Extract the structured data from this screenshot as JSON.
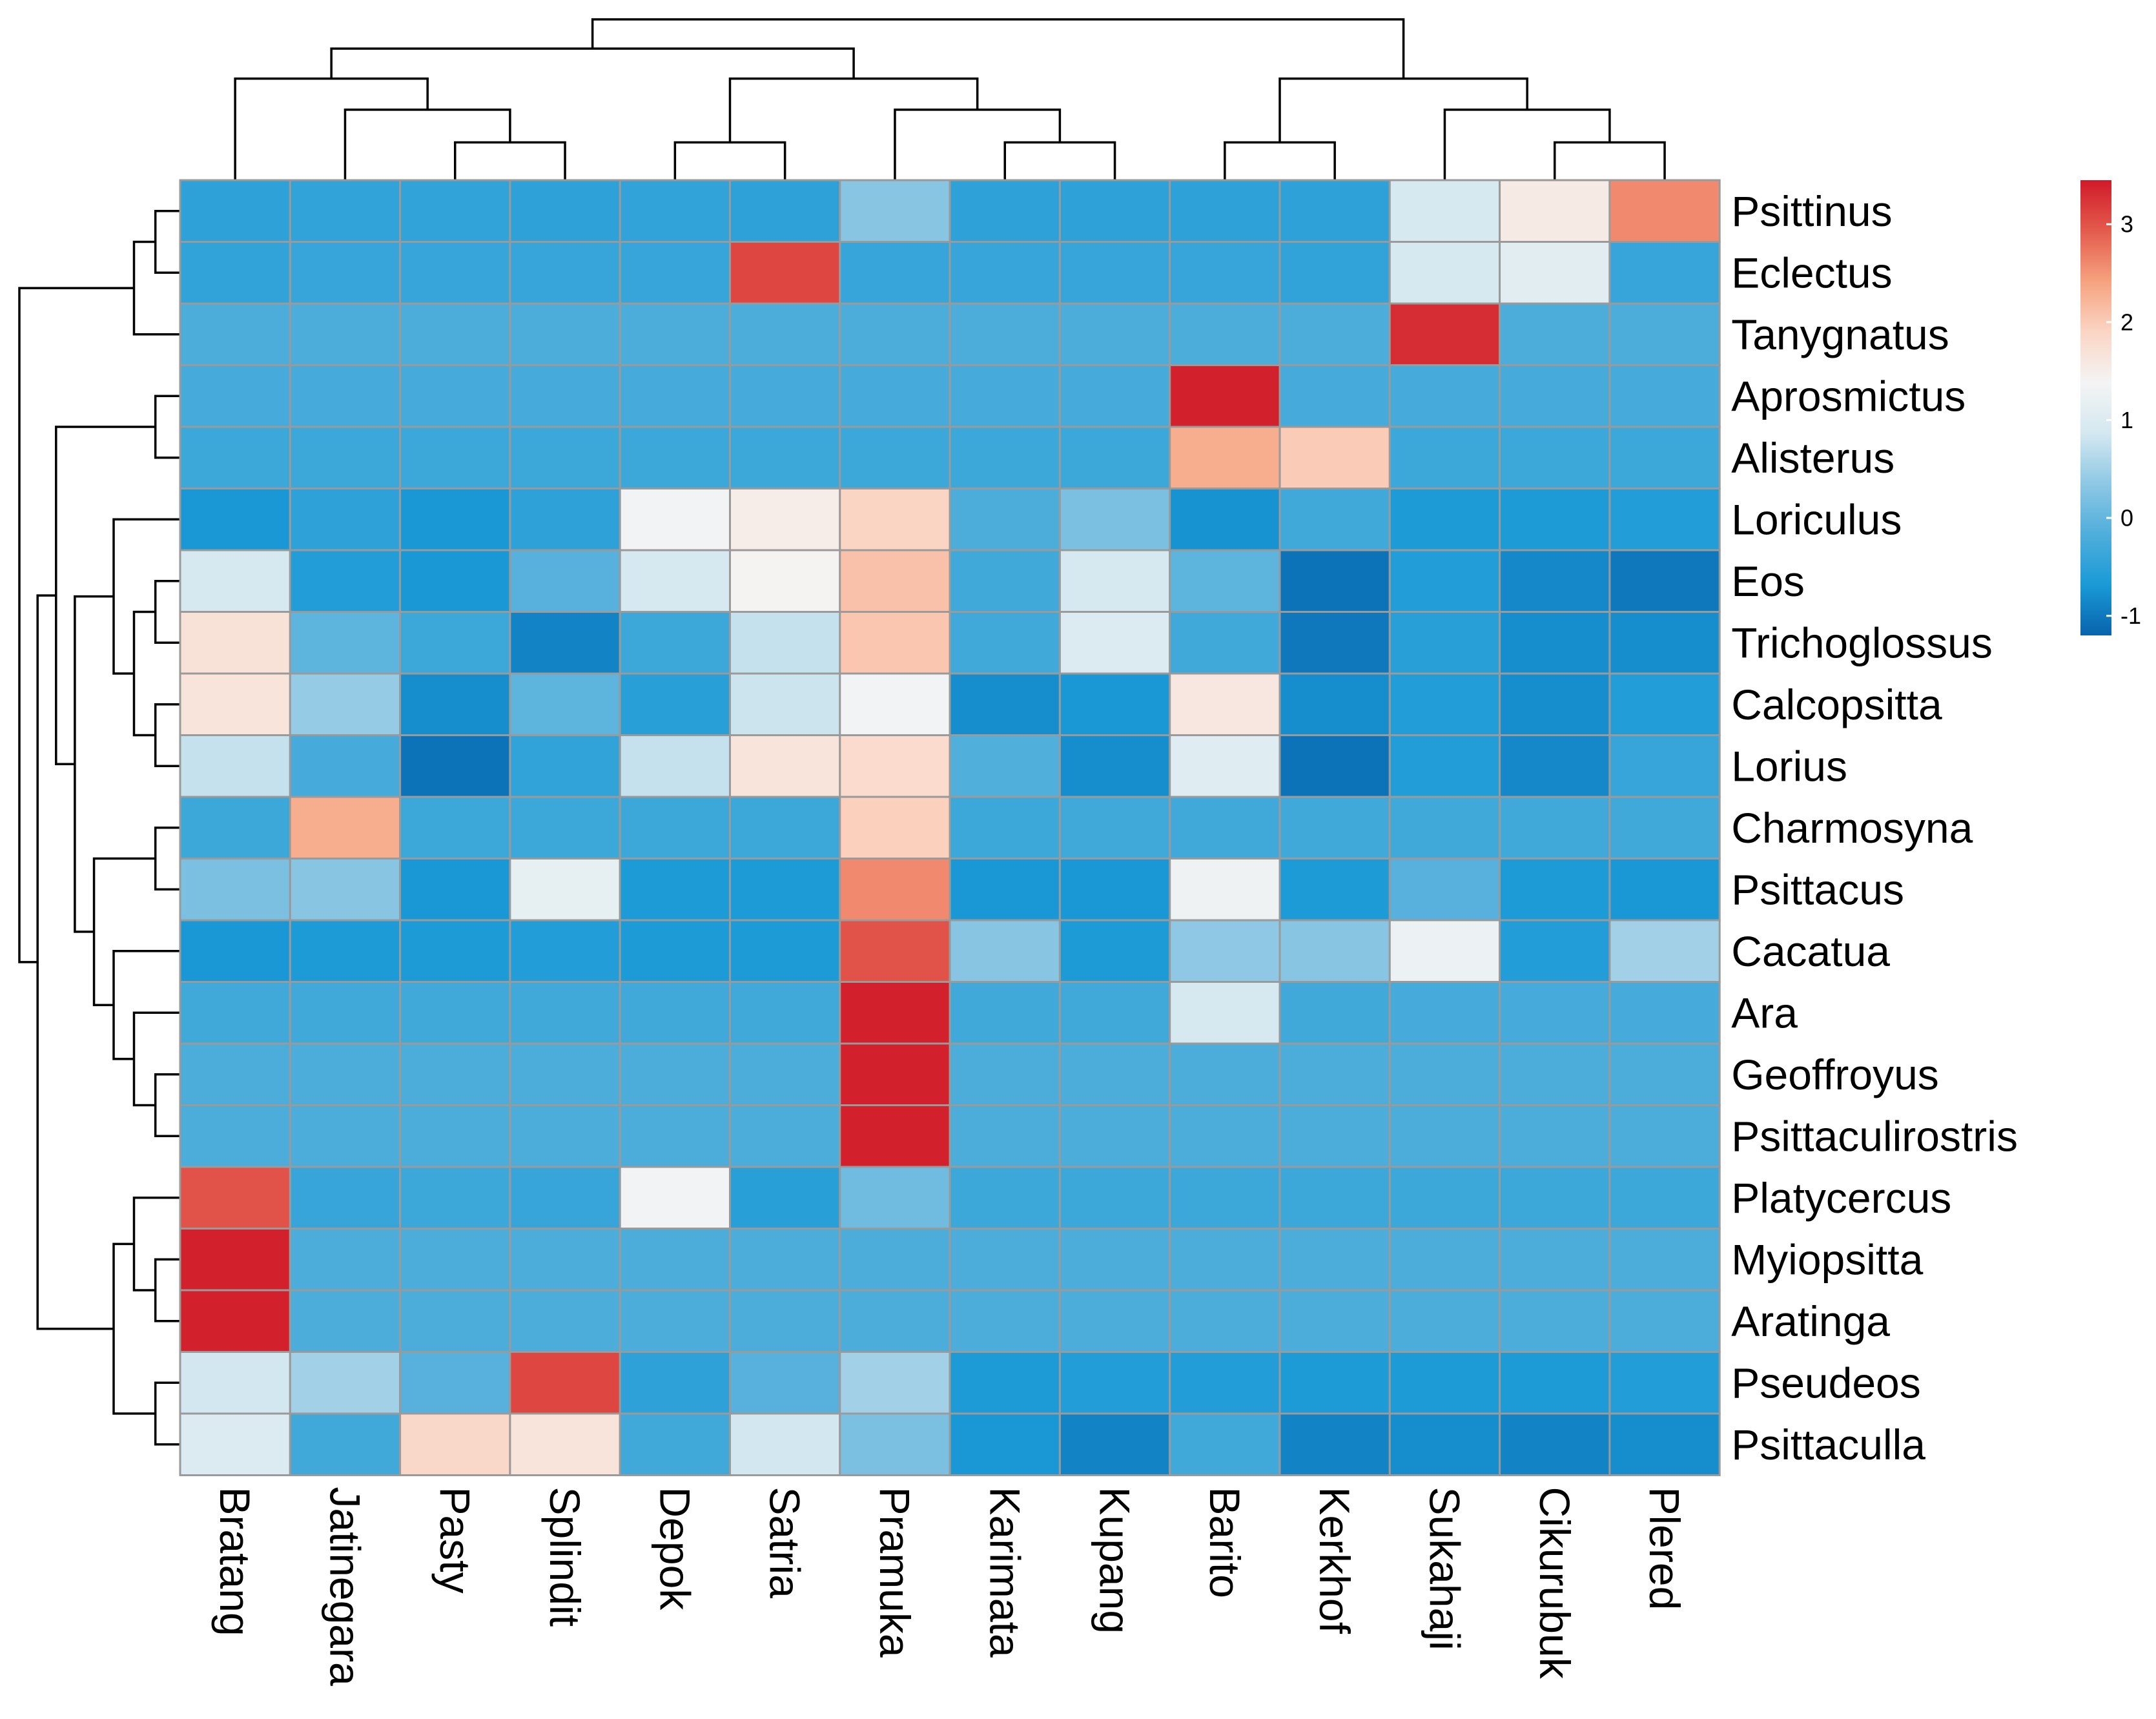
{
  "chart_data": {
    "type": "heatmap",
    "title": "",
    "columns": [
      "Bratang",
      "Jatinegara",
      "Pasty",
      "Splindit",
      "Depok",
      "Satria",
      "Pramuka",
      "Karimata",
      "Kupang",
      "Barito",
      "Kerkhof",
      "Sukahaji",
      "Cikurubuk",
      "Plered"
    ],
    "rows": [
      "Psittinus",
      "Eclectus",
      "Tanygnatus",
      "Aprosmictus",
      "Alisterus",
      "Loriculus",
      "Eos",
      "Trichoglossus",
      "Calcopsitta",
      "Lorius",
      "Charmosyna",
      "Psittacus",
      "Cacatua",
      "Ara",
      "Geoffroyus",
      "Psittaculirostris",
      "Platycercus",
      "Myiopsitta",
      "Aratinga",
      "Pseudeos",
      "Psittaculla"
    ],
    "values": [
      [
        -0.5,
        -0.45,
        -0.45,
        -0.5,
        -0.45,
        -0.5,
        0.3,
        -0.5,
        -0.5,
        -0.5,
        -0.5,
        0.9,
        1.55,
        2.6
      ],
      [
        -0.45,
        -0.4,
        -0.4,
        -0.4,
        -0.4,
        3.1,
        -0.4,
        -0.4,
        -0.4,
        -0.4,
        -0.45,
        0.9,
        1.1,
        -0.4
      ],
      [
        -0.2,
        -0.2,
        -0.2,
        -0.2,
        -0.2,
        -0.2,
        -0.2,
        -0.2,
        -0.2,
        -0.2,
        -0.2,
        3.3,
        -0.2,
        -0.2
      ],
      [
        -0.25,
        -0.25,
        -0.25,
        -0.25,
        -0.25,
        -0.25,
        -0.25,
        -0.25,
        -0.25,
        3.4,
        -0.25,
        -0.25,
        -0.25,
        -0.25
      ],
      [
        -0.35,
        -0.35,
        -0.35,
        -0.35,
        -0.35,
        -0.35,
        -0.35,
        -0.35,
        -0.35,
        2.3,
        2.0,
        -0.35,
        -0.35,
        -0.35
      ],
      [
        -0.7,
        -0.5,
        -0.7,
        -0.5,
        1.35,
        1.5,
        1.9,
        -0.2,
        0.2,
        -0.75,
        -0.3,
        -0.65,
        -0.65,
        -0.6
      ],
      [
        0.9,
        -0.6,
        -0.7,
        -0.1,
        0.9,
        1.4,
        2.1,
        -0.3,
        0.9,
        -0.05,
        -1.05,
        -0.6,
        -0.85,
        -1.0
      ],
      [
        1.7,
        -0.05,
        -0.35,
        -0.9,
        -0.35,
        0.75,
        2.05,
        -0.3,
        1.0,
        -0.3,
        -1.0,
        -0.55,
        -0.8,
        -0.8
      ],
      [
        1.65,
        0.4,
        -0.8,
        -0.05,
        -0.55,
        0.8,
        1.35,
        -0.8,
        -0.7,
        1.6,
        -0.8,
        -0.6,
        -0.8,
        -0.6
      ],
      [
        0.75,
        -0.25,
        -1.05,
        -0.45,
        0.75,
        1.65,
        1.8,
        -0.15,
        -0.8,
        1.05,
        -1.05,
        -0.6,
        -0.85,
        -0.4
      ],
      [
        -0.35,
        2.3,
        -0.35,
        -0.35,
        -0.35,
        -0.35,
        1.95,
        -0.35,
        -0.3,
        -0.3,
        -0.3,
        -0.3,
        -0.3,
        -0.3
      ],
      [
        0.2,
        0.3,
        -0.7,
        1.15,
        -0.65,
        -0.65,
        2.6,
        -0.7,
        -0.7,
        1.3,
        -0.65,
        -0.1,
        -0.65,
        -0.7
      ],
      [
        -0.7,
        -0.65,
        -0.65,
        -0.6,
        -0.65,
        -0.65,
        3.0,
        0.3,
        -0.65,
        0.35,
        0.3,
        1.25,
        -0.6,
        0.5
      ],
      [
        -0.3,
        -0.3,
        -0.3,
        -0.3,
        -0.3,
        -0.3,
        3.4,
        -0.3,
        -0.3,
        0.9,
        -0.3,
        -0.25,
        -0.25,
        -0.25
      ],
      [
        -0.2,
        -0.2,
        -0.2,
        -0.2,
        -0.2,
        -0.2,
        3.4,
        -0.2,
        -0.2,
        -0.2,
        -0.2,
        -0.2,
        -0.2,
        -0.2
      ],
      [
        -0.2,
        -0.2,
        -0.2,
        -0.2,
        -0.2,
        -0.2,
        3.4,
        -0.2,
        -0.2,
        -0.2,
        -0.2,
        -0.2,
        -0.2,
        -0.2
      ],
      [
        3.0,
        -0.4,
        -0.35,
        -0.4,
        1.35,
        -0.55,
        0.1,
        -0.35,
        -0.35,
        -0.35,
        -0.35,
        -0.35,
        -0.35,
        -0.35
      ],
      [
        3.4,
        -0.2,
        -0.2,
        -0.2,
        -0.2,
        -0.2,
        -0.2,
        -0.2,
        -0.2,
        -0.2,
        -0.2,
        -0.2,
        -0.2,
        -0.2
      ],
      [
        3.4,
        -0.2,
        -0.2,
        -0.2,
        -0.2,
        -0.2,
        -0.2,
        -0.2,
        -0.2,
        -0.2,
        -0.2,
        -0.2,
        -0.2,
        -0.2
      ],
      [
        0.85,
        0.5,
        -0.1,
        3.1,
        -0.5,
        -0.1,
        0.5,
        -0.65,
        -0.6,
        -0.6,
        -0.65,
        -0.65,
        -0.65,
        -0.6
      ],
      [
        1.0,
        -0.3,
        1.85,
        1.65,
        -0.3,
        0.85,
        0.2,
        -0.7,
        -0.9,
        -0.3,
        -0.9,
        -0.8,
        -0.9,
        -0.8
      ]
    ],
    "colorbar": {
      "min": -1.2,
      "max": 3.45,
      "ticks": [
        -1,
        0,
        1,
        2,
        3
      ],
      "tick_labels": [
        "-1",
        "0",
        "1",
        "2",
        "3"
      ]
    },
    "palette": [
      "#0863ad",
      "#1a9ad6",
      "#4faedb",
      "#8ec8e4",
      "#d4e8f0",
      "#f4f4f4",
      "#fbd5c4",
      "#f6a27f",
      "#e45b4d",
      "#d01a2a"
    ],
    "row_dendrogram": "[[Psittinus,Eclectus],Tanygnatus] | [[[Aprosmictus,Alisterus],[[Loriculus,[[Eos,Trichoglossus],[Calcopsitta,Lorius]]],[[Charmosyna,Psittacus],[Cacatua,[Ara,[Geoffroyus,Psittaculirostris]]]]]],[[Platycercus,[Myiopsitta,Aratinga]],[Pseudeos,Psittaculla]]]",
    "column_dendrogram": "[[Bratang,[Jatinegara,[Pasty,Splindit]]],[[Depok,Satria],[Pramuka,[Karimata,Kupang]]]] | [[Barito,Kerkhof],[Sukahaji,[Cikurubuk,Plered]]]"
  }
}
